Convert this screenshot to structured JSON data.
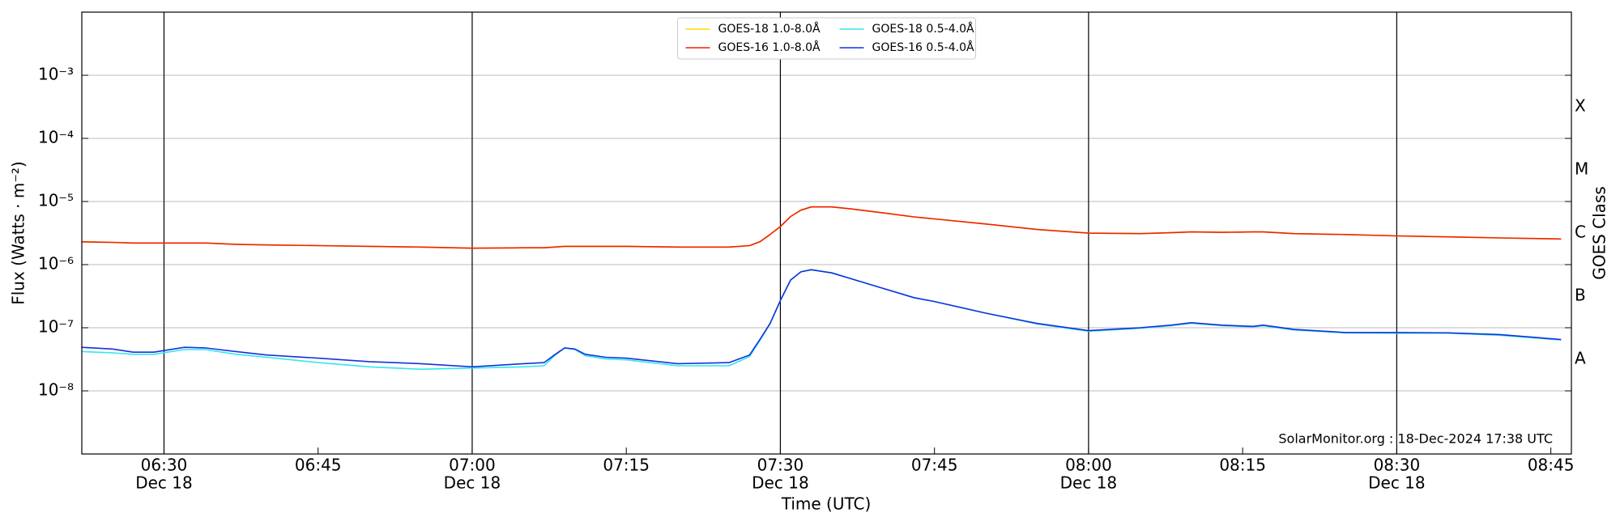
{
  "chart_data": {
    "type": "line",
    "xlabel": "Time (UTC)",
    "ylabel": "Flux (Watts · m⁻²)",
    "y2label": "GOES Class",
    "annotation": "SolarMonitor.org : 18-Dec-2024 17:38 UTC",
    "log_y": true,
    "grid": true,
    "legend": "upper center",
    "xlim": [
      "06:22",
      "08:47"
    ],
    "xticks": [
      "06:30",
      "06:45",
      "07:00",
      "07:15",
      "07:30",
      "07:45",
      "08:00",
      "08:15",
      "08:30",
      "08:45"
    ],
    "xtick_sublabels": [
      "Dec 18",
      null,
      "Dec 18",
      null,
      "Dec 18",
      null,
      "Dec 18",
      null,
      "Dec 18",
      null
    ],
    "ylim": [
      1e-09,
      0.01
    ],
    "yticks": [
      {
        "value": 0.001,
        "label": "10⁻³"
      },
      {
        "value": 0.0001,
        "label": "10⁻⁴"
      },
      {
        "value": 1e-05,
        "label": "10⁻⁵"
      },
      {
        "value": 1e-06,
        "label": "10⁻⁶"
      },
      {
        "value": 1e-07,
        "label": "10⁻⁷"
      },
      {
        "value": 1e-08,
        "label": "10⁻⁸"
      }
    ],
    "y2lim": [
      1e-09,
      0.01
    ],
    "y2ticks": [
      {
        "value": 0.000316,
        "label": "X"
      },
      {
        "value": 3.16e-05,
        "label": "M"
      },
      {
        "value": 3.16e-06,
        "label": "C"
      },
      {
        "value": 3.16e-07,
        "label": "B"
      },
      {
        "value": 3.16e-08,
        "label": "A"
      }
    ],
    "x": [
      "06:22",
      "06:25",
      "06:27",
      "06:29",
      "06:32",
      "06:34",
      "06:37",
      "06:40",
      "06:45",
      "06:50",
      "06:55",
      "07:00",
      "07:05",
      "07:07",
      "07:08",
      "07:09",
      "07:10",
      "07:11",
      "07:13",
      "07:15",
      "07:20",
      "07:25",
      "07:27",
      "07:28",
      "07:29",
      "07:30",
      "07:31",
      "07:32",
      "07:33",
      "07:35",
      "07:37",
      "07:40",
      "07:43",
      "07:45",
      "07:50",
      "07:55",
      "08:00",
      "08:05",
      "08:08",
      "08:10",
      "08:13",
      "08:16",
      "08:17",
      "08:20",
      "08:25",
      "08:30",
      "08:35",
      "08:40",
      "08:46"
    ],
    "series": [
      {
        "name": "GOES-18 1.0-8.0Å",
        "color": "#ffd700",
        "values": [
          2.3e-06,
          2.25e-06,
          2.2e-06,
          2.2e-06,
          2.2e-06,
          2.2e-06,
          2.1e-06,
          2.05e-06,
          2e-06,
          1.95e-06,
          1.9e-06,
          1.82e-06,
          1.85e-06,
          1.85e-06,
          1.9e-06,
          1.95e-06,
          1.95e-06,
          1.95e-06,
          1.95e-06,
          1.95e-06,
          1.9e-06,
          1.9e-06,
          2e-06,
          2.3e-06,
          3e-06,
          4e-06,
          5.8e-06,
          7.3e-06,
          8.2e-06,
          8.2e-06,
          7.6e-06,
          6.6e-06,
          5.7e-06,
          5.3e-06,
          4.4e-06,
          3.6e-06,
          3.15e-06,
          3.1e-06,
          3.2e-06,
          3.3e-06,
          3.25e-06,
          3.3e-06,
          3.3e-06,
          3.1e-06,
          3e-06,
          2.85e-06,
          2.75e-06,
          2.65e-06,
          2.55e-06
        ]
      },
      {
        "name": "GOES-16 1.0-8.0Å",
        "color": "#ee2200",
        "values": [
          2.3e-06,
          2.25e-06,
          2.2e-06,
          2.2e-06,
          2.2e-06,
          2.2e-06,
          2.1e-06,
          2.05e-06,
          2e-06,
          1.95e-06,
          1.9e-06,
          1.82e-06,
          1.85e-06,
          1.85e-06,
          1.9e-06,
          1.95e-06,
          1.95e-06,
          1.95e-06,
          1.95e-06,
          1.95e-06,
          1.9e-06,
          1.9e-06,
          2e-06,
          2.3e-06,
          3e-06,
          4e-06,
          5.8e-06,
          7.3e-06,
          8.2e-06,
          8.2e-06,
          7.6e-06,
          6.6e-06,
          5.7e-06,
          5.3e-06,
          4.4e-06,
          3.6e-06,
          3.15e-06,
          3.1e-06,
          3.2e-06,
          3.3e-06,
          3.25e-06,
          3.3e-06,
          3.3e-06,
          3.1e-06,
          3e-06,
          2.85e-06,
          2.75e-06,
          2.65e-06,
          2.55e-06
        ]
      },
      {
        "name": "GOES-18 0.5-4.0Å",
        "color": "#33e6f0",
        "values": [
          4.2e-08,
          4e-08,
          3.8e-08,
          3.8e-08,
          4.5e-08,
          4.5e-08,
          3.8e-08,
          3.4e-08,
          2.8e-08,
          2.4e-08,
          2.2e-08,
          2.3e-08,
          2.4e-08,
          2.5e-08,
          3.6e-08,
          4.8e-08,
          4.5e-08,
          3.6e-08,
          3.2e-08,
          3.1e-08,
          2.5e-08,
          2.5e-08,
          3.5e-08,
          6.3e-08,
          1.15e-07,
          2.7e-07,
          5.7e-07,
          7.7e-07,
          8.3e-07,
          7.4e-07,
          5.9e-07,
          4.2e-07,
          3e-07,
          2.6e-07,
          1.7e-07,
          1.15e-07,
          8.8e-08,
          9.8e-08,
          1.08e-07,
          1.18e-07,
          1.08e-07,
          1.03e-07,
          1.08e-07,
          9.2e-08,
          8.3e-08,
          8.2e-08,
          8.2e-08,
          7.6e-08,
          6.4e-08
        ]
      },
      {
        "name": "GOES-16 0.5-4.0Å",
        "color": "#1133dd",
        "values": [
          4.9e-08,
          4.6e-08,
          4.1e-08,
          4.1e-08,
          4.9e-08,
          4.8e-08,
          4.2e-08,
          3.7e-08,
          3.3e-08,
          2.9e-08,
          2.7e-08,
          2.4e-08,
          2.7e-08,
          2.8e-08,
          3.7e-08,
          4.8e-08,
          4.6e-08,
          3.8e-08,
          3.4e-08,
          3.3e-08,
          2.7e-08,
          2.8e-08,
          3.7e-08,
          6.5e-08,
          1.17e-07,
          2.7e-07,
          5.7e-07,
          7.7e-07,
          8.3e-07,
          7.4e-07,
          5.9e-07,
          4.2e-07,
          3e-07,
          2.6e-07,
          1.7e-07,
          1.17e-07,
          9e-08,
          1e-07,
          1.1e-07,
          1.2e-07,
          1.1e-07,
          1.05e-07,
          1.1e-07,
          9.4e-08,
          8.4e-08,
          8.4e-08,
          8.3e-08,
          7.8e-08,
          6.5e-08
        ]
      }
    ]
  }
}
